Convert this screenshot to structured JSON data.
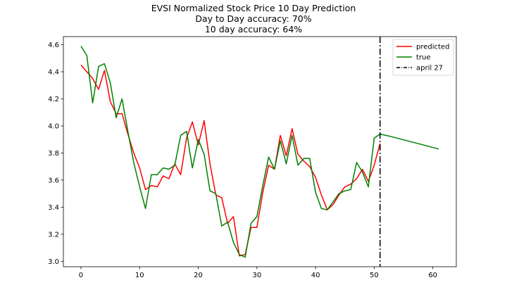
{
  "chart_data": {
    "type": "line",
    "title": "EVSI Normalized Stock Price 10 Day Prediction",
    "subtitle_lines": [
      "Day to Day accuracy: 70%",
      "10 day accuracy: 64%"
    ],
    "xlabel": "",
    "ylabel": "",
    "xlim": [
      -3,
      64
    ],
    "ylim": [
      2.96,
      4.66
    ],
    "xticks": [
      0,
      10,
      20,
      30,
      40,
      50,
      60
    ],
    "yticks": [
      3.0,
      3.2,
      3.4,
      3.6,
      3.8,
      4.0,
      4.2,
      4.4,
      4.6
    ],
    "ytick_labels": [
      "3.0",
      "3.2",
      "3.4",
      "3.6",
      "3.8",
      "4.0",
      "4.2",
      "4.4",
      "4.6"
    ],
    "grid": false,
    "legend_position": "top-right",
    "series": [
      {
        "name": "predicted",
        "color": "#ff0000",
        "x": [
          0,
          1,
          2,
          3,
          4,
          5,
          6,
          7,
          8,
          9,
          10,
          11,
          12,
          13,
          14,
          15,
          16,
          17,
          18,
          19,
          20,
          21,
          22,
          23,
          24,
          25,
          26,
          27,
          28,
          29,
          30,
          31,
          32,
          33,
          34,
          35,
          36,
          37,
          38,
          39,
          40,
          41,
          42,
          43,
          44,
          45,
          46,
          47,
          48,
          49,
          50,
          51
        ],
        "y": [
          4.45,
          4.4,
          4.35,
          4.27,
          4.41,
          4.18,
          4.09,
          4.09,
          3.94,
          3.8,
          3.69,
          3.53,
          3.56,
          3.55,
          3.63,
          3.61,
          3.72,
          3.64,
          3.91,
          4.03,
          3.86,
          4.04,
          3.72,
          3.49,
          3.47,
          3.28,
          3.33,
          3.04,
          3.05,
          3.25,
          3.25,
          3.51,
          3.71,
          3.68,
          3.93,
          3.78,
          3.98,
          3.79,
          3.74,
          3.7,
          3.62,
          3.49,
          3.38,
          3.42,
          3.49,
          3.55,
          3.57,
          3.61,
          3.68,
          3.59,
          3.71,
          3.87
        ]
      },
      {
        "name": "true",
        "color": "#008000",
        "x": [
          0,
          1,
          2,
          3,
          4,
          5,
          6,
          7,
          8,
          9,
          10,
          11,
          12,
          13,
          14,
          15,
          16,
          17,
          18,
          19,
          20,
          21,
          22,
          23,
          24,
          25,
          26,
          27,
          28,
          29,
          30,
          31,
          32,
          33,
          34,
          35,
          36,
          37,
          38,
          39,
          40,
          41,
          42,
          43,
          44,
          45,
          46,
          47,
          48,
          49,
          50,
          51,
          53,
          61
        ],
        "y": [
          4.59,
          4.52,
          4.17,
          4.44,
          4.46,
          4.32,
          4.06,
          4.2,
          3.96,
          3.73,
          3.55,
          3.39,
          3.64,
          3.64,
          3.69,
          3.68,
          3.71,
          3.93,
          3.96,
          3.69,
          3.9,
          3.79,
          3.52,
          3.5,
          3.26,
          3.29,
          3.14,
          3.05,
          3.03,
          3.28,
          3.33,
          3.56,
          3.77,
          3.68,
          3.89,
          3.72,
          3.93,
          3.71,
          3.76,
          3.76,
          3.51,
          3.39,
          3.38,
          3.44,
          3.5,
          3.52,
          3.53,
          3.73,
          3.66,
          3.55,
          3.91,
          3.94,
          3.92,
          3.83
        ]
      }
    ],
    "annotations": [
      {
        "type": "vline",
        "x": 51,
        "name": "april 27",
        "color": "#000000",
        "style": "dash-dot"
      }
    ]
  }
}
